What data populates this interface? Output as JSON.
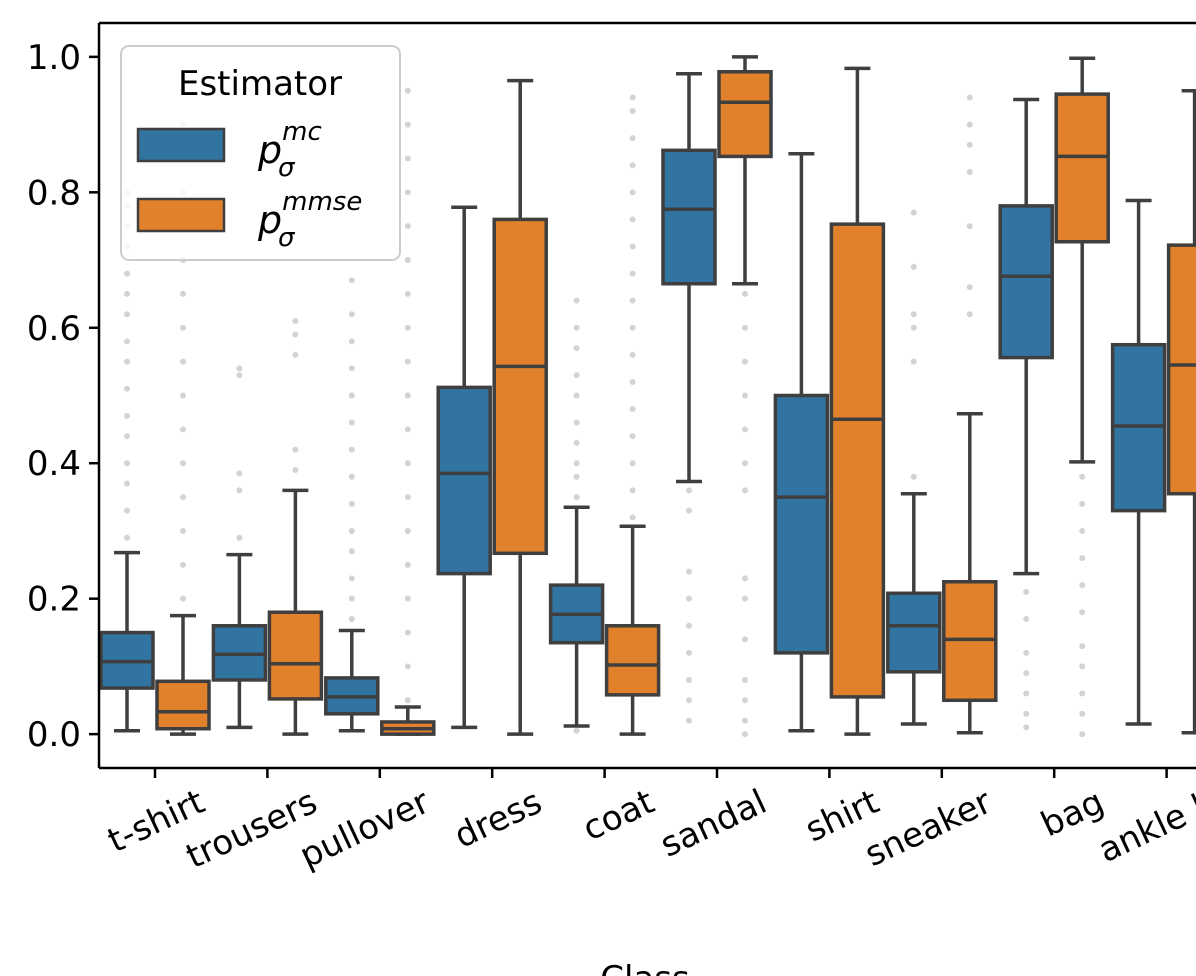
{
  "chart_data": {
    "type": "box",
    "xlabel": "Class",
    "ylabel": "",
    "ylim": [
      -0.05,
      1.05
    ],
    "yticks": [
      "0.0",
      "0.2",
      "0.4",
      "0.6",
      "0.8",
      "1.0"
    ],
    "categories": [
      "t-shirt",
      "trousers",
      "pullover",
      "dress",
      "coat",
      "sandal",
      "shirt",
      "sneaker",
      "bag",
      "ankle b"
    ],
    "legend": {
      "title": "Estimator",
      "position": "top-left",
      "entries": [
        {
          "base": "p",
          "sub": "σ",
          "sup": "mc",
          "color": "#3274a1"
        },
        {
          "base": "p",
          "sub": "σ",
          "sup": "mmse",
          "color": "#e1812c"
        }
      ]
    },
    "series": [
      {
        "name": "p_sigma^mc",
        "color": "#3274a1",
        "boxes": [
          {
            "wlo": 0.005,
            "q1": 0.068,
            "med": 0.107,
            "q3": 0.15,
            "whi": 0.268,
            "out": [
              0.29,
              0.33,
              0.37,
              0.4,
              0.44,
              0.47,
              0.51,
              0.55,
              0.58,
              0.62,
              0.65,
              0.68,
              0.72,
              0.75,
              0.78,
              0.8
            ]
          },
          {
            "wlo": 0.01,
            "q1": 0.08,
            "med": 0.118,
            "q3": 0.16,
            "whi": 0.265,
            "out": [
              0.29,
              0.36,
              0.385,
              0.53,
              0.54
            ]
          },
          {
            "wlo": 0.005,
            "q1": 0.03,
            "med": 0.055,
            "q3": 0.083,
            "whi": 0.153,
            "out": [
              0.17,
              0.2,
              0.23,
              0.27,
              0.3,
              0.34,
              0.38,
              0.42,
              0.46,
              0.5,
              0.54,
              0.58,
              0.62,
              0.67
            ]
          },
          {
            "wlo": 0.01,
            "q1": 0.237,
            "med": 0.385,
            "q3": 0.512,
            "whi": 0.778,
            "out": []
          },
          {
            "wlo": 0.012,
            "q1": 0.135,
            "med": 0.177,
            "q3": 0.22,
            "whi": 0.335,
            "out": [
              0.005,
              0.35,
              0.38,
              0.4,
              0.43,
              0.46,
              0.5,
              0.53,
              0.57,
              0.6,
              0.64
            ]
          },
          {
            "wlo": 0.373,
            "q1": 0.665,
            "med": 0.775,
            "q3": 0.862,
            "whi": 0.975,
            "out": [
              0.02,
              0.05,
              0.08,
              0.12,
              0.16,
              0.2,
              0.24,
              0.33,
              0.36
            ]
          },
          {
            "wlo": 0.005,
            "q1": 0.12,
            "med": 0.35,
            "q3": 0.5,
            "whi": 0.857,
            "out": []
          },
          {
            "wlo": 0.015,
            "q1": 0.092,
            "med": 0.16,
            "q3": 0.208,
            "whi": 0.355,
            "out": [
              0.38,
              0.55,
              0.6,
              0.62,
              0.69,
              0.77
            ]
          },
          {
            "wlo": 0.237,
            "q1": 0.556,
            "med": 0.676,
            "q3": 0.78,
            "whi": 0.937,
            "out": [
              0.01,
              0.03,
              0.06,
              0.09,
              0.12,
              0.17,
              0.21
            ]
          },
          {
            "wlo": 0.015,
            "q1": 0.33,
            "med": 0.455,
            "q3": 0.575,
            "whi": 0.788,
            "out": []
          }
        ]
      },
      {
        "name": "p_sigma^mmse",
        "color": "#e1812c",
        "boxes": [
          {
            "wlo": 0.0,
            "q1": 0.008,
            "med": 0.033,
            "q3": 0.078,
            "whi": 0.175,
            "out": [
              0.2,
              0.25,
              0.3,
              0.35,
              0.4,
              0.45,
              0.5,
              0.55,
              0.6,
              0.65,
              0.7,
              0.75,
              0.8,
              0.85,
              0.9,
              0.95
            ]
          },
          {
            "wlo": 0.0,
            "q1": 0.052,
            "med": 0.104,
            "q3": 0.18,
            "whi": 0.36,
            "out": [
              0.39,
              0.42,
              0.56,
              0.59,
              0.61
            ]
          },
          {
            "wlo": 0.0,
            "q1": 0.0,
            "med": 0.008,
            "q3": 0.018,
            "whi": 0.04,
            "out": [
              0.05,
              0.1,
              0.15,
              0.2,
              0.25,
              0.3,
              0.35,
              0.4,
              0.45,
              0.5,
              0.55,
              0.6,
              0.65,
              0.7,
              0.75,
              0.8,
              0.85,
              0.9,
              0.95
            ]
          },
          {
            "wlo": 0.0,
            "q1": 0.267,
            "med": 0.543,
            "q3": 0.76,
            "whi": 0.965,
            "out": []
          },
          {
            "wlo": 0.0,
            "q1": 0.058,
            "med": 0.102,
            "q3": 0.16,
            "whi": 0.307,
            "out": [
              0.32,
              0.36,
              0.4,
              0.44,
              0.48,
              0.52,
              0.56,
              0.6,
              0.64,
              0.68,
              0.72,
              0.76,
              0.8,
              0.84,
              0.88,
              0.92,
              0.94
            ]
          },
          {
            "wlo": 0.665,
            "q1": 0.853,
            "med": 0.933,
            "q3": 0.978,
            "whi": 1.0,
            "out": [
              0.0,
              0.02,
              0.05,
              0.08,
              0.14,
              0.2,
              0.23,
              0.36,
              0.4,
              0.45,
              0.5,
              0.55,
              0.6,
              0.65
            ]
          },
          {
            "wlo": 0.0,
            "q1": 0.055,
            "med": 0.465,
            "q3": 0.753,
            "whi": 0.983,
            "out": []
          },
          {
            "wlo": 0.002,
            "q1": 0.05,
            "med": 0.14,
            "q3": 0.225,
            "whi": 0.473,
            "out": [
              0.62,
              0.66,
              0.75,
              0.83,
              0.87,
              0.9,
              0.94
            ]
          },
          {
            "wlo": 0.402,
            "q1": 0.727,
            "med": 0.853,
            "q3": 0.945,
            "whi": 0.998,
            "out": [
              0.0,
              0.03,
              0.06,
              0.1,
              0.13,
              0.18,
              0.22,
              0.26,
              0.3,
              0.34,
              0.38
            ]
          },
          {
            "wlo": 0.002,
            "q1": 0.355,
            "med": 0.545,
            "q3": 0.722,
            "whi": 0.95,
            "out": []
          }
        ]
      }
    ]
  }
}
